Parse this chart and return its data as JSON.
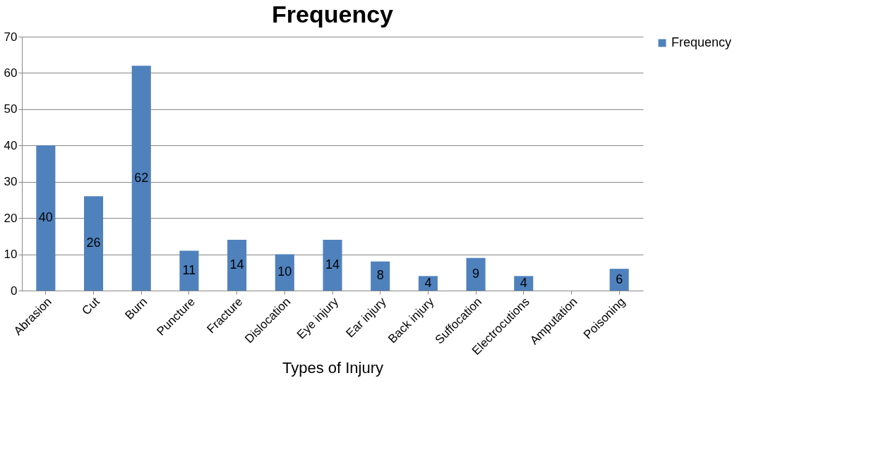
{
  "chart_data": {
    "type": "bar",
    "title": "Frequency",
    "xlabel": "Types of Injury",
    "categories": [
      "Abrasion",
      "Cut",
      "Burn",
      "Puncture",
      "Fracture",
      "Dislocation",
      "Eye injury",
      "Ear injury",
      "Back injury",
      "Suffocation",
      "Electrocutions",
      "Amputation",
      "Poisoning"
    ],
    "series": [
      {
        "name": "Frequency",
        "color": "#4f81bd",
        "values": [
          40,
          26,
          62,
          11,
          14,
          10,
          14,
          8,
          4,
          9,
          4,
          0,
          6
        ]
      }
    ],
    "value_labels": [
      "40",
      "26",
      "62",
      "11",
      "14",
      "10",
      "14",
      "8",
      "4",
      "9",
      "4",
      null,
      "6"
    ],
    "ylim": [
      0,
      70
    ],
    "yticks": [
      0,
      10,
      20,
      30,
      40,
      50,
      60,
      70
    ],
    "grid": "y",
    "legend": "right"
  }
}
